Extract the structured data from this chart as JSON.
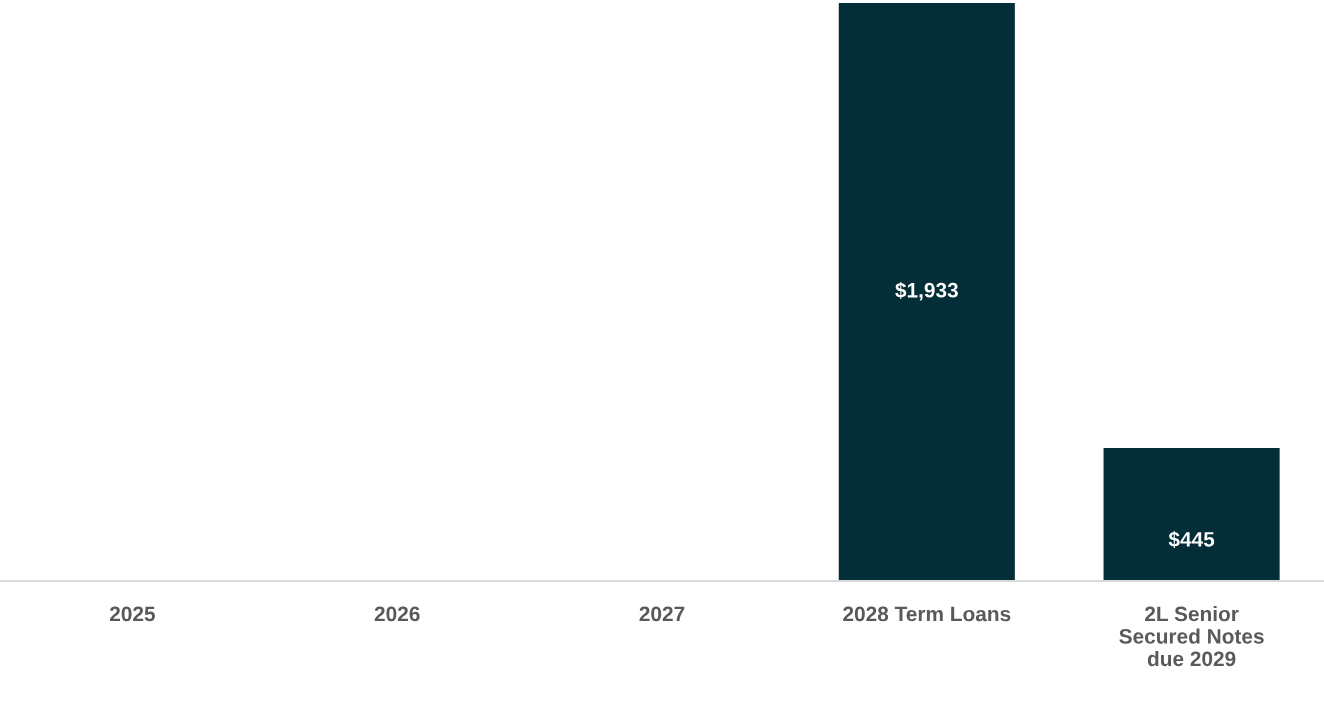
{
  "chart_data": {
    "type": "bar",
    "categories": [
      "2025",
      "2026",
      "2027",
      "2028 Term Loans",
      "2L Senior\nSecured Notes\ndue 2029"
    ],
    "values": [
      0,
      0,
      0,
      1933,
      445
    ],
    "value_labels": [
      null,
      null,
      null,
      "$1,933",
      "$445"
    ],
    "color": "#032e38",
    "grid": false,
    "legend": false
  }
}
